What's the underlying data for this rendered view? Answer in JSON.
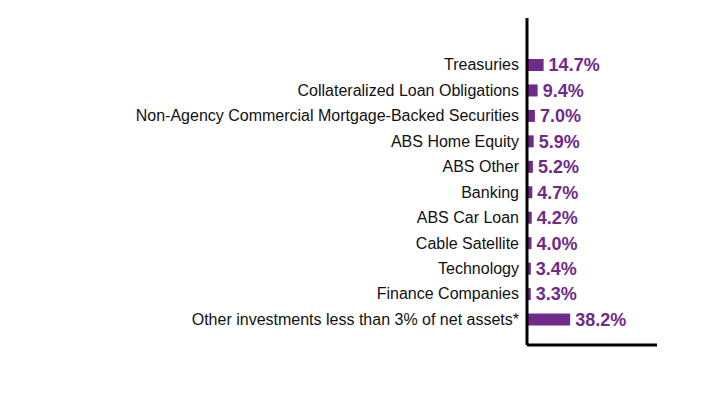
{
  "chart_data": {
    "type": "bar",
    "orientation": "horizontal",
    "categories": [
      "Treasuries",
      "Collateralized Loan Obligations",
      "Non-Agency Commercial Mortgage-Backed Securities",
      "ABS Home Equity",
      "ABS Other",
      "Banking",
      "ABS Car Loan",
      "Cable Satellite",
      "Technology",
      "Finance Companies",
      "Other investments less than 3% of net assets*"
    ],
    "values": [
      14.7,
      9.4,
      7.0,
      5.9,
      5.2,
      4.7,
      4.2,
      4.0,
      3.4,
      3.3,
      38.2
    ],
    "value_labels": [
      "14.7%",
      "9.4%",
      "7.0%",
      "5.9%",
      "5.2%",
      "4.7%",
      "4.2%",
      "4.0%",
      "3.4%",
      "3.3%",
      "38.2%"
    ],
    "color": "#6f2a8a",
    "xlim": [
      0,
      115
    ],
    "data_labels": true,
    "tick_labels": "y",
    "grid": false
  }
}
